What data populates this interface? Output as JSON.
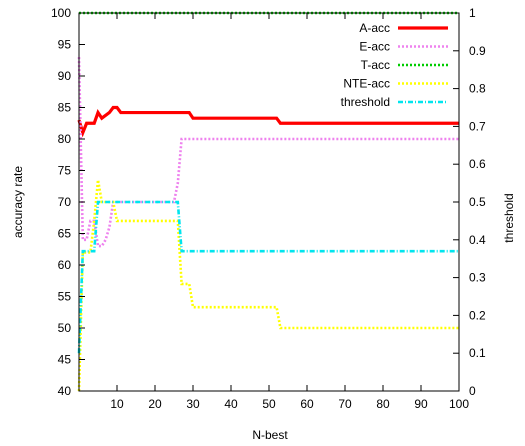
{
  "chart_data": {
    "type": "line",
    "title": "",
    "xlabel": "N-best",
    "ylabel": "accuracy rate",
    "y2label": "threshold",
    "xlim": [
      0,
      100
    ],
    "ylim": [
      40,
      100
    ],
    "y2lim": [
      0,
      1
    ],
    "x_ticks": [
      10,
      20,
      30,
      40,
      50,
      60,
      70,
      80,
      90,
      100
    ],
    "y_ticks": [
      40,
      45,
      50,
      55,
      60,
      65,
      70,
      75,
      80,
      85,
      90,
      95,
      100
    ],
    "y2_ticks": [
      0,
      0.1,
      0.2,
      0.3,
      0.4,
      0.5,
      0.6,
      0.7,
      0.8,
      0.9,
      1
    ],
    "grid": false,
    "legend_position": "top-right",
    "series": [
      {
        "name": "A-acc",
        "axis": "left",
        "color": "#ff0000",
        "style": "solid",
        "points": [
          [
            0,
            83
          ],
          [
            1,
            81
          ],
          [
            2,
            82.5
          ],
          [
            4,
            82.5
          ],
          [
            5,
            84.2
          ],
          [
            6,
            83.3
          ],
          [
            8,
            84.2
          ],
          [
            9,
            85
          ],
          [
            10,
            85
          ],
          [
            11,
            84.2
          ],
          [
            29,
            84.2
          ],
          [
            30,
            83.3
          ],
          [
            52,
            83.3
          ],
          [
            53,
            82.5
          ],
          [
            100,
            82.5
          ]
        ]
      },
      {
        "name": "E-acc",
        "axis": "left",
        "color": "#ee82ee",
        "style": "dotted",
        "points": [
          [
            0,
            93
          ],
          [
            1,
            64
          ],
          [
            2,
            64
          ],
          [
            3,
            67
          ],
          [
            4,
            67
          ],
          [
            5,
            63
          ],
          [
            6,
            63
          ],
          [
            7,
            64
          ],
          [
            8,
            66
          ],
          [
            9,
            70
          ],
          [
            25,
            70
          ],
          [
            26,
            73
          ],
          [
            27,
            80
          ],
          [
            100,
            80
          ]
        ]
      },
      {
        "name": "T-acc",
        "axis": "left",
        "color": "#00cc00",
        "style": "dotted",
        "points": [
          [
            0,
            100
          ],
          [
            100,
            100
          ]
        ]
      },
      {
        "name": "NTE-acc",
        "axis": "left",
        "color": "#ffff00",
        "style": "dotted",
        "points": [
          [
            0,
            40
          ],
          [
            1,
            62
          ],
          [
            3,
            62
          ],
          [
            4,
            67
          ],
          [
            5,
            73.5
          ],
          [
            6,
            70
          ],
          [
            9,
            70
          ],
          [
            10,
            67
          ],
          [
            26,
            67
          ],
          [
            27,
            57
          ],
          [
            29,
            57
          ],
          [
            30,
            53.3
          ],
          [
            52,
            53.3
          ],
          [
            53,
            50
          ],
          [
            100,
            50
          ]
        ]
      },
      {
        "name": "threshold",
        "axis": "right",
        "color": "#00e5ee",
        "style": "dashdot",
        "points": [
          [
            0,
            0.1
          ],
          [
            1,
            0.37
          ],
          [
            4,
            0.37
          ],
          [
            5,
            0.5
          ],
          [
            26,
            0.5
          ],
          [
            27,
            0.37
          ],
          [
            100,
            0.37
          ]
        ]
      }
    ]
  }
}
